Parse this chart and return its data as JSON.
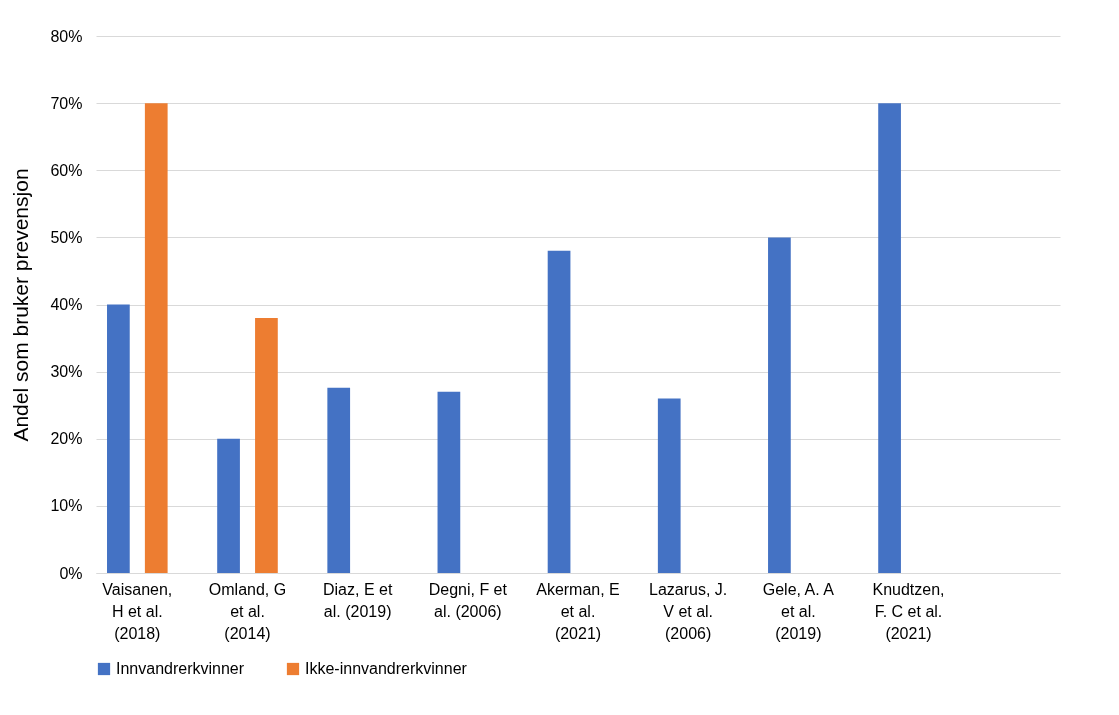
{
  "chart_data": {
    "type": "bar",
    "ylabel": "Andel som bruker prevensjon",
    "categories": [
      "Vaisanen, H et al. (2018)",
      "Omland, G et al. (2014)",
      "Diaz, E et al. (2019)",
      "Degni, F et al. (2006)",
      "Akerman, E et al. (2021)",
      "Lazarus, J. V et al. (2006)",
      "Gele, A. A et al. (2019)",
      "Knudtzen, F. C et al. (2021)",
      null
    ],
    "series": [
      {
        "name": "Innvandrerkvinner",
        "color": "#4472c4",
        "values": [
          40,
          20,
          27.6,
          27,
          48,
          26,
          50,
          70,
          null
        ]
      },
      {
        "name": "Ikke-innvandrerkvinner",
        "color": "#ed7d31",
        "values": [
          70,
          38,
          null,
          null,
          null,
          null,
          null,
          null,
          null
        ]
      }
    ],
    "ylim": [
      0,
      80
    ],
    "yticks": [
      {
        "value": 0,
        "label": "0%"
      },
      {
        "value": 10,
        "label": "10%"
      },
      {
        "value": 20,
        "label": "20%"
      },
      {
        "value": 30,
        "label": "30%"
      },
      {
        "value": 40,
        "label": "40%"
      },
      {
        "value": 50,
        "label": "50%"
      },
      {
        "value": 60,
        "label": "60%"
      },
      {
        "value": 70,
        "label": "70%"
      },
      {
        "value": 80,
        "label": "80%"
      }
    ],
    "grid": "y",
    "legend": "bottom"
  }
}
